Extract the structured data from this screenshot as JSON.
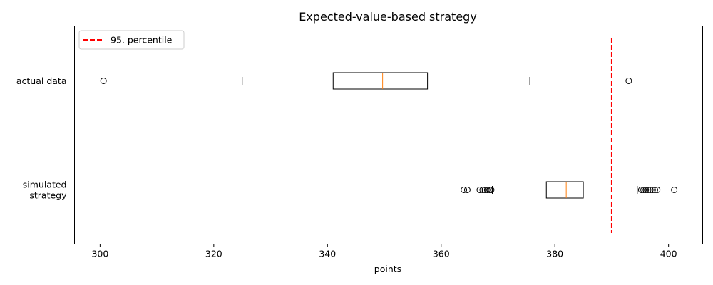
{
  "chart_data": {
    "type": "boxplot",
    "orientation": "horizontal",
    "title": "Expected-value-based strategy",
    "xlabel": "points",
    "ylabel": "",
    "xlim": [
      295.5,
      406
    ],
    "x_ticks": [
      300,
      320,
      340,
      360,
      380,
      400
    ],
    "grid": false,
    "legend_position": "top-left",
    "categories": [
      "simulated\nstrategy",
      "actual data"
    ],
    "boxes": [
      {
        "label_lines": [
          "simulated",
          "strategy"
        ],
        "whisker_low": 369,
        "q1": 378.5,
        "median": 382,
        "q3": 385,
        "whisker_high": 394.5,
        "outliers": [
          364,
          364.6,
          366.8,
          367.3,
          367.7,
          368.1,
          368.5,
          368.8,
          395.2,
          395.6,
          396,
          396.4,
          396.8,
          397.2,
          397.6,
          398,
          401
        ]
      },
      {
        "label_lines": [
          "actual data"
        ],
        "whisker_low": 325,
        "q1": 341,
        "median": 349.7,
        "q3": 357.6,
        "whisker_high": 375.6,
        "outliers": [
          300.6,
          393
        ]
      }
    ],
    "reference_line": {
      "name": "95. percentile",
      "value": 390,
      "color": "#ff0000",
      "style": "dashed"
    },
    "colors": {
      "box": "#000000",
      "median": "#ff7f0e",
      "reference": "#ff0000"
    }
  }
}
